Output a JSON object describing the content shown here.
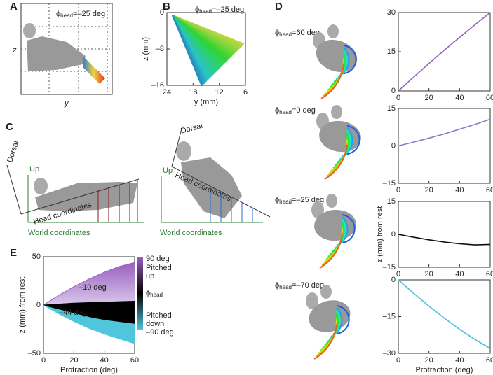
{
  "panel_labels": [
    "A",
    "B",
    "C",
    "D",
    "E"
  ],
  "panel_a": {
    "phi": "ϕ",
    "phi_sub": "head",
    "phi_value": "=–25 deg",
    "x_label": "y",
    "y_label": "z"
  },
  "panel_c": {
    "left": {
      "dorsal": "Dorsal",
      "up": "Up",
      "head": "Head coordinates",
      "world": "World coordinates"
    },
    "right": {
      "dorsal": "Dorsal",
      "up": "Up",
      "head": "Head coordinates",
      "world": "World coordinates"
    }
  },
  "chart_data": [
    {
      "type": "fan",
      "title_symbol": "ϕ",
      "title_sub": "head",
      "title": "=–25 deg",
      "xlabel": "y (mm)",
      "ylabel": "z (mm)",
      "xlim": [
        24,
        6
      ],
      "xticks": [
        24,
        18,
        12,
        6
      ],
      "ylim": [
        -16,
        0
      ],
      "yticks": [
        {
          "value": -16,
          "label": "–16"
        },
        {
          "value": -8,
          "label": "–8"
        },
        0
      ]
    },
    {
      "type": "line",
      "title_symbol": "ϕ",
      "title_sub": "head",
      "title": "=60 deg",
      "x": [
        0,
        10,
        20,
        30,
        40,
        50,
        60
      ],
      "values": [
        0,
        5.3,
        10.5,
        15.6,
        20.5,
        25.3,
        30
      ],
      "color": "#9a5fb8",
      "xlim": [
        0,
        60
      ],
      "xticks": [
        0,
        20,
        40,
        60
      ],
      "ylim": [
        0,
        30
      ],
      "yticks": [
        0,
        15,
        30
      ]
    },
    {
      "type": "line",
      "title_symbol": "ϕ",
      "title_sub": "head",
      "title": "=0 deg",
      "x": [
        0,
        10,
        20,
        30,
        40,
        50,
        60
      ],
      "values": [
        0,
        1.5,
        3.1,
        4.8,
        6.7,
        8.6,
        10.7
      ],
      "color": "#8c78c8",
      "xlim": [
        0,
        60
      ],
      "xticks": [
        0,
        20,
        40,
        60
      ],
      "ylim": [
        -15,
        15
      ],
      "yticks": [
        {
          "value": -15,
          "label": "–15"
        },
        0,
        15
      ]
    },
    {
      "type": "line",
      "title_symbol": "ϕ",
      "title_sub": "head",
      "title": "=–25 deg",
      "ylabel": "z (mm) from rest",
      "x": [
        0,
        10,
        20,
        30,
        40,
        50,
        60
      ],
      "values": [
        0,
        -1.3,
        -2.5,
        -3.5,
        -4.3,
        -4.8,
        -4.6
      ],
      "color": "#111111",
      "xlim": [
        0,
        60
      ],
      "xticks": [
        0,
        20,
        40,
        60
      ],
      "ylim": [
        -15,
        15
      ],
      "yticks": [
        {
          "value": -15,
          "label": "–15"
        },
        0,
        15
      ]
    },
    {
      "type": "line",
      "title_symbol": "ϕ",
      "title_sub": "head",
      "title": "=–70 deg",
      "xlabel": "Protraction (deg)",
      "x": [
        0,
        10,
        20,
        30,
        40,
        50,
        60
      ],
      "values": [
        0,
        -5.5,
        -10.7,
        -15.6,
        -20.2,
        -24.3,
        -28
      ],
      "color": "#4fc0d8",
      "xlim": [
        0,
        60
      ],
      "xticks": [
        0,
        20,
        40,
        60
      ],
      "ylim": [
        -30,
        0
      ],
      "yticks": [
        {
          "value": -30,
          "label": "–30"
        },
        {
          "value": -15,
          "label": "–15"
        },
        0
      ]
    },
    {
      "type": "area",
      "xlabel": "Protraction (deg)",
      "ylabel": "z (mm) from rest",
      "x": [
        0,
        10,
        20,
        30,
        40,
        50,
        60
      ],
      "series": [
        {
          "name": "90 deg",
          "color": "#9b5fc0",
          "values": [
            0,
            10,
            19,
            27,
            34,
            40,
            44
          ]
        },
        {
          "name": "–10 deg",
          "color": "#000000",
          "values": [
            0,
            1,
            2,
            2.5,
            3,
            3.5,
            4
          ]
        },
        {
          "name": "–44 deg",
          "color": "#000000",
          "values": [
            0,
            -4,
            -8,
            -12,
            -15,
            -17,
            -19
          ]
        },
        {
          "name": "–90 deg",
          "color": "#4fc6dc",
          "values": [
            0,
            -9,
            -17,
            -24,
            -30,
            -35,
            -40
          ]
        }
      ],
      "colorbar": {
        "upper": [
          "Pitched",
          "up"
        ],
        "symbol": "ϕ",
        "symbol_sub": "head",
        "lower": [
          "Pitched",
          "down"
        ]
      },
      "xlim": [
        0,
        60
      ],
      "xticks": [
        0,
        20,
        40,
        60
      ],
      "ylim": [
        -50,
        50
      ],
      "yticks": [
        {
          "value": -50,
          "label": "–50"
        },
        0,
        50
      ]
    }
  ]
}
